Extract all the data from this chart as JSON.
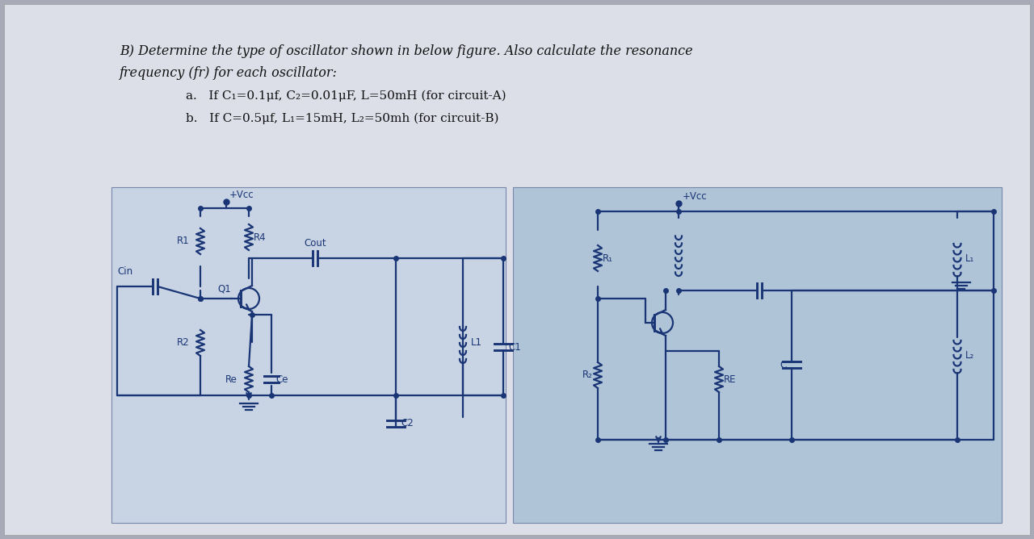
{
  "bg_outer": "#a8aab8",
  "bg_page": "#dcdee8",
  "bg_circ_left": "#c8d4e4",
  "bg_circ_right": "#b0c4d8",
  "lc": "#1a3575",
  "tc": "#111111",
  "title1": "B) Determine the type of oscillator shown in below figure. Also calculate the resonance",
  "title2": "frequency (fr) for each oscillator:",
  "item_a": "a.   If C₁=0.1μf, C₂=0.01μF, L=50mH (for circuit-A)",
  "item_b": "b.   If C=0.5μf, L₁=15mH, L₂=50mh (for circuit-B)"
}
